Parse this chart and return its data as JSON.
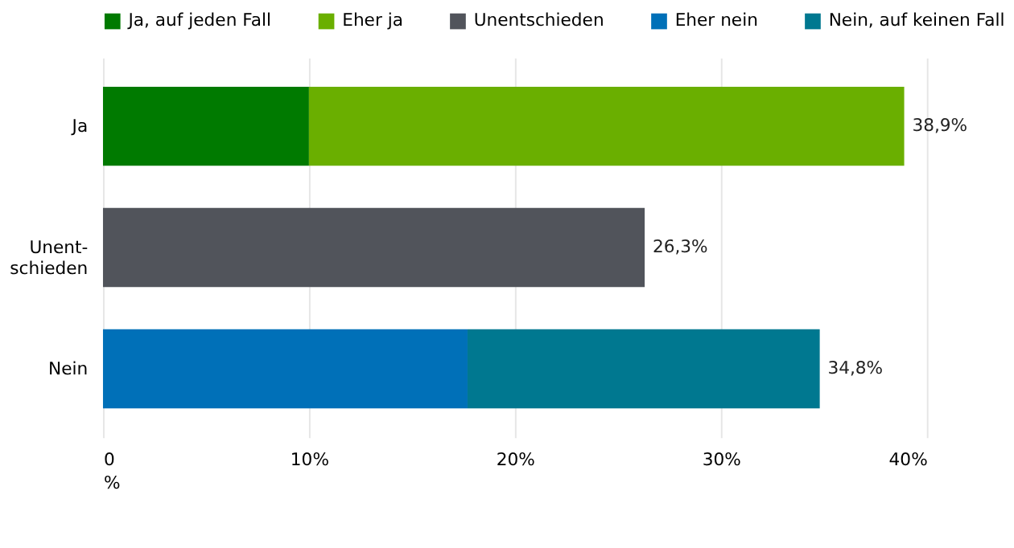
{
  "chart_data": {
    "type": "bar",
    "orientation": "horizontal",
    "stacked": true,
    "categories": [
      "Ja",
      "Unent-\nschieden",
      "Nein"
    ],
    "series": [
      {
        "name": "Ja, auf jeden Fall",
        "color": "#007a00",
        "values": [
          10.0,
          null,
          null
        ]
      },
      {
        "name": "Eher ja",
        "color": "#6aaf00",
        "values": [
          28.9,
          null,
          null
        ]
      },
      {
        "name": "Unentschieden",
        "color": "#51545b",
        "values": [
          null,
          26.3,
          null
        ]
      },
      {
        "name": "Eher nein",
        "color": "#0070b8",
        "values": [
          null,
          null,
          17.7
        ]
      },
      {
        "name": "Nein, auf keinen Fall",
        "color": "#007890",
        "values": [
          null,
          null,
          17.1
        ]
      }
    ],
    "totals": [
      "38,9%",
      "26,3%",
      "34,8%"
    ],
    "xlabel": "%",
    "xlim": [
      0,
      40
    ],
    "xticks": [
      0,
      {
        "value": 10,
        "label": "10%"
      },
      {
        "value": 20,
        "label": "20%"
      },
      {
        "value": 30,
        "label": "30%"
      },
      {
        "value": 40,
        "label": "40%"
      }
    ],
    "grid": "x",
    "legend": "top"
  }
}
